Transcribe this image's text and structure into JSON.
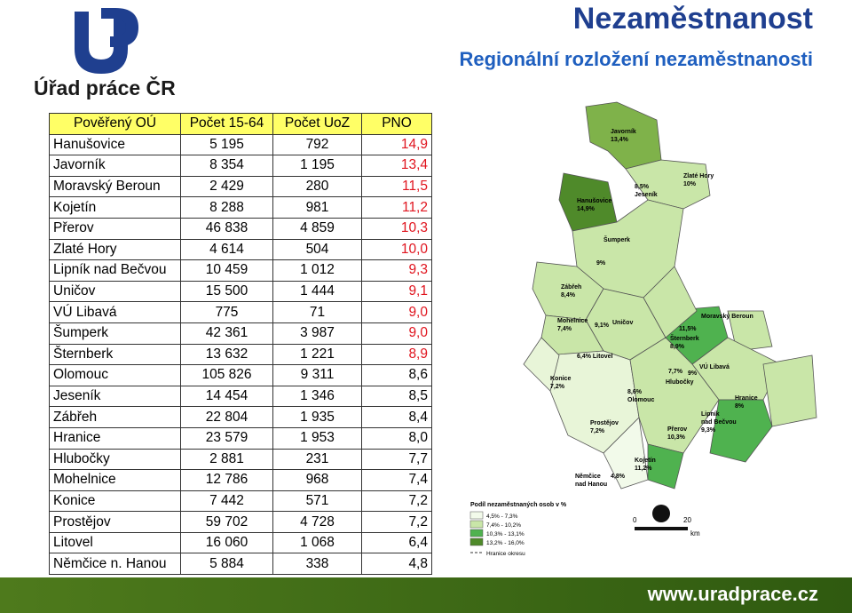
{
  "logo": {
    "text": "Úřad práce ČR"
  },
  "header": {
    "title": "Nezaměstnanost",
    "subtitle": "Regionální rozložení nezaměstnanosti"
  },
  "table": {
    "columns": [
      "Pověřený OÚ",
      "Počet 15-64",
      "Počet UoZ",
      "PNO"
    ],
    "rows": [
      [
        "Hanušovice",
        "5 195",
        "792",
        "14,9"
      ],
      [
        "Javorník",
        "8 354",
        "1 195",
        "13,4"
      ],
      [
        "Moravský Beroun",
        "2 429",
        "280",
        "11,5"
      ],
      [
        "Kojetín",
        "8 288",
        "981",
        "11,2"
      ],
      [
        "Přerov",
        "46 838",
        "4 859",
        "10,3"
      ],
      [
        "Zlaté Hory",
        "4 614",
        "504",
        "10,0"
      ],
      [
        "Lipník nad Bečvou",
        "10 459",
        "1 012",
        "9,3"
      ],
      [
        "Uničov",
        "15 500",
        "1 444",
        "9,1"
      ],
      [
        "VÚ Libavá",
        "775",
        "71",
        "9,0"
      ],
      [
        "Šumperk",
        "42 361",
        "3 987",
        "9,0"
      ],
      [
        "Šternberk",
        "13 632",
        "1 221",
        "8,9"
      ],
      [
        "Olomouc",
        "105 826",
        "9 311",
        "8,6"
      ],
      [
        "Jeseník",
        "14 454",
        "1 346",
        "8,5"
      ],
      [
        "Zábřeh",
        "22 804",
        "1 935",
        "8,4"
      ],
      [
        "Hranice",
        "23 579",
        "1 953",
        "8,0"
      ],
      [
        "Hlubočky",
        "2 881",
        "231",
        "7,7"
      ],
      [
        "Mohelnice",
        "12 786",
        "968",
        "7,4"
      ],
      [
        "Konice",
        "7 442",
        "571",
        "7,2"
      ],
      [
        "Prostějov",
        "59 702",
        "4 728",
        "7,2"
      ],
      [
        "Litovel",
        "16 060",
        "1 068",
        "6,4"
      ],
      [
        "Němčice n. Hanou",
        "5 884",
        "338",
        "4,8"
      ]
    ]
  },
  "map": {
    "labels": [
      [
        "Javorník",
        "13,4%"
      ],
      [
        "Zlaté Hory",
        "10%"
      ],
      [
        "8,5%",
        "Jeseník"
      ],
      [
        "Hanušovice",
        "14,9%"
      ],
      [
        "Šumperk"
      ],
      [
        "9%"
      ],
      [
        "Zábřeh",
        "8,4%"
      ],
      [
        "Mohelnice",
        "7,4%"
      ],
      [
        "9,1%"
      ],
      [
        "Uničov"
      ],
      [
        "Moravský Beroun"
      ],
      [
        "11,5%"
      ],
      [
        "Šternberk",
        "8,9%"
      ],
      [
        "6,4% Litovel"
      ],
      [
        "Konice",
        "7,2%"
      ],
      [
        "7,7%"
      ],
      [
        "9%"
      ],
      [
        "VÚ Libavá"
      ],
      [
        "Hlubočky"
      ],
      [
        "8,6%",
        "Olomouc"
      ],
      [
        "Hranice",
        "8%"
      ],
      [
        "Lipník",
        "nad Bečvou",
        "9,3%"
      ],
      [
        "Prostějov",
        "7,2%"
      ],
      [
        "Přerov",
        "10,3%"
      ],
      [
        "Kojetín",
        "11,2%"
      ],
      [
        "4,8%"
      ],
      [
        "Němčice",
        "nad Hanou"
      ]
    ],
    "legend": {
      "title": "Podíl nezaměstnaných osob v %",
      "items": [
        "4,5% - 7,3%",
        "7,4% - 10,2%",
        "10,3% - 13,1%",
        "13,2% - 16,0%"
      ],
      "border": "Hranice okresu"
    },
    "scale": [
      "0",
      "20",
      "km"
    ]
  },
  "footer": {
    "url": "www.uradprace.cz"
  }
}
